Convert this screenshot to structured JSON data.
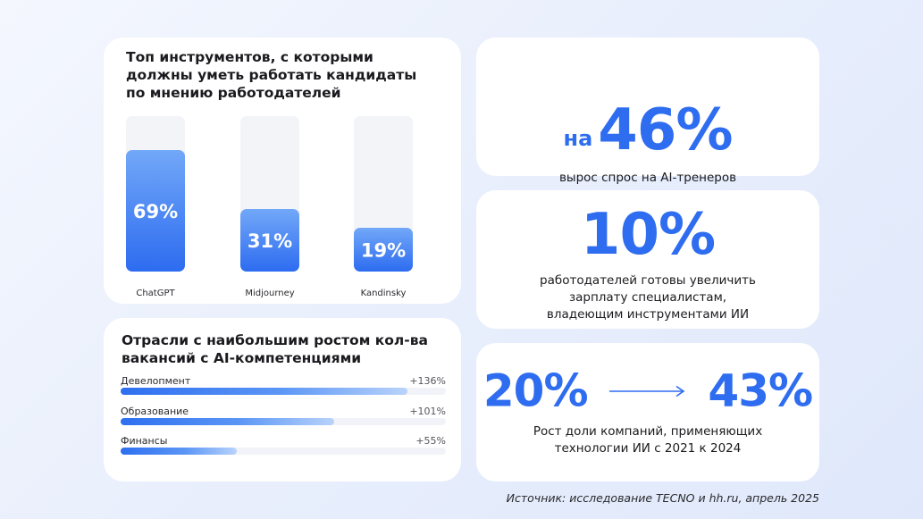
{
  "colors": {
    "accent": "#2e6cf0",
    "accent_light": "#6fa4f7",
    "track": "#f1f3f8",
    "text": "#1b1b1f"
  },
  "tools_card": {
    "title": "Топ инструментов, с которыми\nдолжны уметь работать кандидаты\nпо мнению работодателей"
  },
  "chart_data": [
    {
      "type": "bar",
      "title": "Топ инструментов, с которыми должны уметь работать кандидаты по мнению работодателей",
      "categories": [
        "ChatGPT",
        "Midjourney",
        "Kandinsky"
      ],
      "values": [
        69,
        31,
        19
      ],
      "value_labels": [
        "69%",
        "31%",
        "19%"
      ],
      "unit": "%",
      "ylim": [
        0,
        100
      ],
      "grid": false,
      "legend": "none"
    },
    {
      "type": "bar",
      "orientation": "horizontal",
      "title": "Отрасли с наибольшим ростом кол-ва вакансий с AI-компетенциями",
      "categories": [
        "Девелопмент",
        "Образование",
        "Финансы"
      ],
      "values": [
        136,
        101,
        55
      ],
      "value_labels": [
        "+136%",
        "+101%",
        "+55%"
      ],
      "unit": "%",
      "grid": false,
      "legend": "none"
    }
  ],
  "industries_card": {
    "title": "Отрасли с наибольшим ростом кол-ва\nвакансий с AI-компетенциями",
    "rows": [
      {
        "label": "Девелопмент",
        "value": "+136%"
      },
      {
        "label": "Образование",
        "value": "+101%"
      },
      {
        "label": "Финансы",
        "value": "+55%"
      }
    ]
  },
  "stat1": {
    "prefix": "на",
    "value": "46%",
    "description": "вырос спрос на AI-тренеров"
  },
  "stat2": {
    "value": "10%",
    "description": "работодателей готовы увеличить\nзарплату специалистам,\nвладеющим инструментами ИИ"
  },
  "stat3": {
    "from": "20%",
    "to": "43%",
    "description": "Рост доли компаний, применяющих\nтехнологии ИИ с 2021 к 2024"
  },
  "source": "Источник: исследование TECNO и hh.ru, апрель 2025"
}
